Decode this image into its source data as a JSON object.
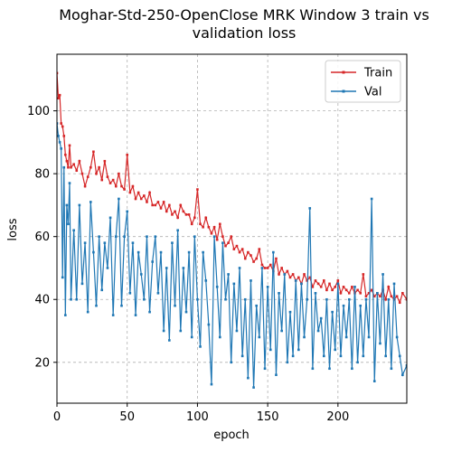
{
  "chart_data": {
    "type": "line",
    "title_lines": [
      "Moghar-Std-250-OpenClose MRK Window 3 train vs",
      "validation loss"
    ],
    "xlabel": "epoch",
    "ylabel": "loss",
    "xlim": [
      0,
      249
    ],
    "ylim": [
      7,
      118
    ],
    "xticks": [
      0,
      50,
      100,
      150,
      200
    ],
    "yticks": [
      20,
      40,
      60,
      80,
      100
    ],
    "grid": true,
    "legend_position": "top-right",
    "series": [
      {
        "name": "Train",
        "color": "#d62728",
        "points": [
          [
            0,
            112
          ],
          [
            1,
            104
          ],
          [
            2,
            105
          ],
          [
            3,
            96
          ],
          [
            4,
            95
          ],
          [
            5,
            92
          ],
          [
            6,
            86
          ],
          [
            7,
            84
          ],
          [
            8,
            82
          ],
          [
            9,
            89
          ],
          [
            10,
            82
          ],
          [
            12,
            83
          ],
          [
            14,
            81
          ],
          [
            16,
            84
          ],
          [
            18,
            80
          ],
          [
            20,
            76
          ],
          [
            22,
            79
          ],
          [
            24,
            82
          ],
          [
            26,
            87
          ],
          [
            28,
            80
          ],
          [
            30,
            82
          ],
          [
            32,
            78
          ],
          [
            34,
            84
          ],
          [
            36,
            79
          ],
          [
            38,
            77
          ],
          [
            40,
            78
          ],
          [
            42,
            76
          ],
          [
            44,
            80
          ],
          [
            46,
            76
          ],
          [
            48,
            75
          ],
          [
            50,
            86
          ],
          [
            52,
            74
          ],
          [
            54,
            76
          ],
          [
            56,
            72
          ],
          [
            58,
            74
          ],
          [
            60,
            72
          ],
          [
            62,
            73
          ],
          [
            64,
            71
          ],
          [
            66,
            74
          ],
          [
            68,
            70
          ],
          [
            70,
            70
          ],
          [
            72,
            71
          ],
          [
            74,
            69
          ],
          [
            76,
            71
          ],
          [
            78,
            68
          ],
          [
            80,
            70
          ],
          [
            82,
            67
          ],
          [
            84,
            68
          ],
          [
            86,
            66
          ],
          [
            88,
            70
          ],
          [
            90,
            68
          ],
          [
            92,
            67
          ],
          [
            94,
            67
          ],
          [
            96,
            64
          ],
          [
            98,
            66
          ],
          [
            100,
            75
          ],
          [
            102,
            64
          ],
          [
            104,
            63
          ],
          [
            106,
            66
          ],
          [
            108,
            63
          ],
          [
            110,
            61
          ],
          [
            112,
            63
          ],
          [
            114,
            59
          ],
          [
            116,
            64
          ],
          [
            118,
            60
          ],
          [
            120,
            57
          ],
          [
            122,
            58
          ],
          [
            124,
            60
          ],
          [
            126,
            56
          ],
          [
            128,
            57
          ],
          [
            130,
            55
          ],
          [
            132,
            56
          ],
          [
            134,
            53
          ],
          [
            136,
            55
          ],
          [
            138,
            54
          ],
          [
            140,
            52
          ],
          [
            142,
            53
          ],
          [
            144,
            56
          ],
          [
            146,
            51
          ],
          [
            148,
            50
          ],
          [
            150,
            50
          ],
          [
            152,
            51
          ],
          [
            154,
            49
          ],
          [
            156,
            53
          ],
          [
            158,
            48
          ],
          [
            160,
            50
          ],
          [
            162,
            48
          ],
          [
            164,
            49
          ],
          [
            166,
            47
          ],
          [
            168,
            48
          ],
          [
            170,
            46
          ],
          [
            172,
            47
          ],
          [
            174,
            45
          ],
          [
            176,
            48
          ],
          [
            178,
            46
          ],
          [
            180,
            47
          ],
          [
            182,
            44
          ],
          [
            184,
            46
          ],
          [
            186,
            45
          ],
          [
            188,
            44
          ],
          [
            190,
            46
          ],
          [
            192,
            43
          ],
          [
            194,
            45
          ],
          [
            196,
            43
          ],
          [
            198,
            44
          ],
          [
            200,
            46
          ],
          [
            202,
            42
          ],
          [
            204,
            44
          ],
          [
            206,
            43
          ],
          [
            208,
            42
          ],
          [
            210,
            44
          ],
          [
            212,
            42
          ],
          [
            214,
            43
          ],
          [
            216,
            42
          ],
          [
            218,
            48
          ],
          [
            220,
            41
          ],
          [
            222,
            42
          ],
          [
            224,
            43
          ],
          [
            226,
            41
          ],
          [
            228,
            42
          ],
          [
            230,
            41
          ],
          [
            232,
            43
          ],
          [
            234,
            40
          ],
          [
            236,
            44
          ],
          [
            238,
            41
          ],
          [
            240,
            40
          ],
          [
            242,
            41
          ],
          [
            244,
            39
          ],
          [
            246,
            42
          ],
          [
            249,
            40
          ]
        ]
      },
      {
        "name": "Val",
        "color": "#1f77b4",
        "points": [
          [
            0,
            96
          ],
          [
            1,
            92
          ],
          [
            2,
            90
          ],
          [
            3,
            88
          ],
          [
            4,
            47
          ],
          [
            5,
            82
          ],
          [
            6,
            35
          ],
          [
            7,
            70
          ],
          [
            8,
            64
          ],
          [
            9,
            77
          ],
          [
            10,
            40
          ],
          [
            12,
            62
          ],
          [
            14,
            40
          ],
          [
            16,
            70
          ],
          [
            18,
            45
          ],
          [
            20,
            58
          ],
          [
            22,
            36
          ],
          [
            24,
            71
          ],
          [
            26,
            55
          ],
          [
            28,
            38
          ],
          [
            30,
            60
          ],
          [
            32,
            43
          ],
          [
            34,
            58
          ],
          [
            36,
            50
          ],
          [
            38,
            66
          ],
          [
            40,
            35
          ],
          [
            42,
            60
          ],
          [
            44,
            72
          ],
          [
            46,
            38
          ],
          [
            48,
            60
          ],
          [
            50,
            68
          ],
          [
            52,
            42
          ],
          [
            54,
            58
          ],
          [
            56,
            35
          ],
          [
            58,
            55
          ],
          [
            60,
            48
          ],
          [
            62,
            40
          ],
          [
            64,
            60
          ],
          [
            66,
            36
          ],
          [
            68,
            52
          ],
          [
            70,
            60
          ],
          [
            72,
            42
          ],
          [
            74,
            55
          ],
          [
            76,
            30
          ],
          [
            78,
            50
          ],
          [
            80,
            27
          ],
          [
            82,
            58
          ],
          [
            84,
            38
          ],
          [
            86,
            62
          ],
          [
            88,
            30
          ],
          [
            90,
            50
          ],
          [
            92,
            36
          ],
          [
            94,
            55
          ],
          [
            96,
            28
          ],
          [
            98,
            60
          ],
          [
            100,
            40
          ],
          [
            102,
            25
          ],
          [
            104,
            55
          ],
          [
            106,
            46
          ],
          [
            108,
            32
          ],
          [
            110,
            13
          ],
          [
            112,
            60
          ],
          [
            114,
            44
          ],
          [
            116,
            28
          ],
          [
            118,
            58
          ],
          [
            120,
            40
          ],
          [
            122,
            48
          ],
          [
            124,
            20
          ],
          [
            126,
            45
          ],
          [
            128,
            30
          ],
          [
            130,
            50
          ],
          [
            132,
            22
          ],
          [
            134,
            40
          ],
          [
            136,
            15
          ],
          [
            138,
            46
          ],
          [
            140,
            12
          ],
          [
            142,
            38
          ],
          [
            144,
            28
          ],
          [
            146,
            50
          ],
          [
            148,
            18
          ],
          [
            150,
            44
          ],
          [
            152,
            24
          ],
          [
            154,
            55
          ],
          [
            156,
            16
          ],
          [
            158,
            42
          ],
          [
            160,
            30
          ],
          [
            162,
            48
          ],
          [
            164,
            20
          ],
          [
            166,
            36
          ],
          [
            168,
            22
          ],
          [
            170,
            46
          ],
          [
            172,
            24
          ],
          [
            174,
            45
          ],
          [
            176,
            28
          ],
          [
            178,
            40
          ],
          [
            180,
            69
          ],
          [
            182,
            18
          ],
          [
            184,
            42
          ],
          [
            186,
            30
          ],
          [
            188,
            34
          ],
          [
            190,
            22
          ],
          [
            192,
            40
          ],
          [
            194,
            18
          ],
          [
            196,
            36
          ],
          [
            198,
            24
          ],
          [
            200,
            45
          ],
          [
            202,
            22
          ],
          [
            204,
            38
          ],
          [
            206,
            28
          ],
          [
            208,
            40
          ],
          [
            210,
            18
          ],
          [
            212,
            44
          ],
          [
            214,
            20
          ],
          [
            216,
            38
          ],
          [
            218,
            22
          ],
          [
            220,
            40
          ],
          [
            222,
            28
          ],
          [
            224,
            72
          ],
          [
            226,
            14
          ],
          [
            228,
            42
          ],
          [
            230,
            26
          ],
          [
            232,
            48
          ],
          [
            234,
            22
          ],
          [
            236,
            40
          ],
          [
            238,
            18
          ],
          [
            240,
            45
          ],
          [
            242,
            28
          ],
          [
            244,
            22
          ],
          [
            246,
            16
          ],
          [
            249,
            19
          ]
        ]
      }
    ]
  }
}
